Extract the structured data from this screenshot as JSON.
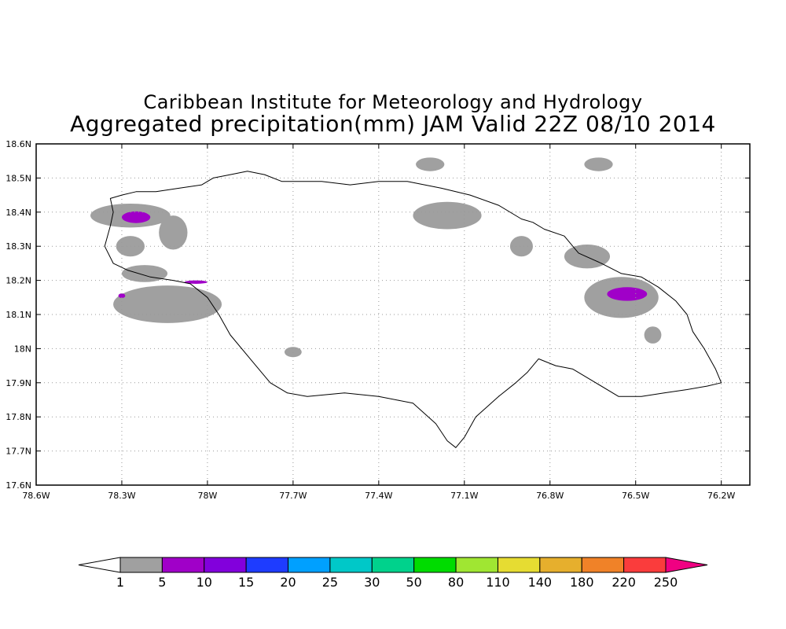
{
  "title_line1": "Caribbean Institute for Meteorology and Hydrology",
  "title_line2": "Aggregated precipitation(mm) JAM Valid 22Z 08/10 2014",
  "map": {
    "lon_range": [
      -78.6,
      -76.1
    ],
    "lat_range": [
      17.6,
      18.6
    ],
    "lon_ticks": [
      -78.6,
      -78.3,
      -78.0,
      -77.7,
      -77.4,
      -77.1,
      -76.8,
      -76.5,
      -76.2
    ],
    "lon_tick_labels": [
      "78.6W",
      "78.3W",
      "78W",
      "77.7W",
      "77.4W",
      "77.1W",
      "76.8W",
      "76.5W",
      "76.2W"
    ],
    "lat_ticks": [
      17.6,
      17.7,
      17.8,
      17.9,
      18.0,
      18.1,
      18.2,
      18.3,
      18.4,
      18.5,
      18.6
    ],
    "lat_tick_labels": [
      "17.6N",
      "17.7N",
      "17.8N",
      "17.9N",
      "18N",
      "18.1N",
      "18.2N",
      "18.3N",
      "18.4N",
      "18.5N",
      "18.6N"
    ],
    "grid": "dotted",
    "coastline": [
      [
        -78.34,
        18.44
      ],
      [
        -78.3,
        18.45
      ],
      [
        -78.25,
        18.46
      ],
      [
        -78.18,
        18.46
      ],
      [
        -78.1,
        18.47
      ],
      [
        -78.02,
        18.48
      ],
      [
        -77.98,
        18.5
      ],
      [
        -77.92,
        18.51
      ],
      [
        -77.86,
        18.52
      ],
      [
        -77.8,
        18.51
      ],
      [
        -77.74,
        18.49
      ],
      [
        -77.7,
        18.49
      ],
      [
        -77.6,
        18.49
      ],
      [
        -77.5,
        18.48
      ],
      [
        -77.4,
        18.49
      ],
      [
        -77.3,
        18.49
      ],
      [
        -77.18,
        18.47
      ],
      [
        -77.08,
        18.45
      ],
      [
        -76.98,
        18.42
      ],
      [
        -76.9,
        18.38
      ],
      [
        -76.86,
        18.37
      ],
      [
        -76.82,
        18.35
      ],
      [
        -76.75,
        18.33
      ],
      [
        -76.7,
        18.28
      ],
      [
        -76.62,
        18.25
      ],
      [
        -76.55,
        18.22
      ],
      [
        -76.48,
        18.21
      ],
      [
        -76.42,
        18.18
      ],
      [
        -76.36,
        18.14
      ],
      [
        -76.32,
        18.1
      ],
      [
        -76.3,
        18.05
      ],
      [
        -76.26,
        18.0
      ],
      [
        -76.22,
        17.94
      ],
      [
        -76.2,
        17.9
      ],
      [
        -76.25,
        17.89
      ],
      [
        -76.32,
        17.88
      ],
      [
        -76.4,
        17.87
      ],
      [
        -76.48,
        17.86
      ],
      [
        -76.56,
        17.86
      ],
      [
        -76.64,
        17.9
      ],
      [
        -76.72,
        17.94
      ],
      [
        -76.78,
        17.95
      ],
      [
        -76.84,
        17.97
      ],
      [
        -76.88,
        17.93
      ],
      [
        -76.92,
        17.9
      ],
      [
        -76.98,
        17.86
      ],
      [
        -77.02,
        17.83
      ],
      [
        -77.06,
        17.8
      ],
      [
        -77.1,
        17.74
      ],
      [
        -77.13,
        17.71
      ],
      [
        -77.16,
        17.73
      ],
      [
        -77.2,
        17.78
      ],
      [
        -77.28,
        17.84
      ],
      [
        -77.4,
        17.86
      ],
      [
        -77.52,
        17.87
      ],
      [
        -77.65,
        17.86
      ],
      [
        -77.72,
        17.87
      ],
      [
        -77.78,
        17.9
      ],
      [
        -77.84,
        17.96
      ],
      [
        -77.92,
        18.04
      ],
      [
        -77.96,
        18.1
      ],
      [
        -78.0,
        18.15
      ],
      [
        -78.06,
        18.19
      ],
      [
        -78.12,
        18.2
      ],
      [
        -78.2,
        18.21
      ],
      [
        -78.28,
        18.23
      ],
      [
        -78.33,
        18.25
      ],
      [
        -78.36,
        18.3
      ],
      [
        -78.34,
        18.36
      ],
      [
        -78.33,
        18.4
      ],
      [
        -78.34,
        18.44
      ]
    ],
    "rain_areas": [
      {
        "level": 1,
        "center": [
          -78.27,
          18.39
        ],
        "radius": [
          0.14,
          0.035
        ]
      },
      {
        "level": 1,
        "center": [
          -78.12,
          18.34
        ],
        "radius": [
          0.05,
          0.05
        ]
      },
      {
        "level": 1,
        "center": [
          -78.27,
          18.3
        ],
        "radius": [
          0.05,
          0.03
        ]
      },
      {
        "level": 1,
        "center": [
          -78.22,
          18.22
        ],
        "radius": [
          0.08,
          0.025
        ]
      },
      {
        "level": 1,
        "center": [
          -78.14,
          18.13
        ],
        "radius": [
          0.19,
          0.055
        ]
      },
      {
        "level": 1,
        "center": [
          -77.7,
          17.99
        ],
        "radius": [
          0.03,
          0.015
        ]
      },
      {
        "level": 1,
        "center": [
          -77.22,
          18.54
        ],
        "radius": [
          0.05,
          0.02
        ]
      },
      {
        "level": 1,
        "center": [
          -77.16,
          18.39
        ],
        "radius": [
          0.12,
          0.04
        ]
      },
      {
        "level": 1,
        "center": [
          -76.9,
          18.3
        ],
        "radius": [
          0.04,
          0.03
        ]
      },
      {
        "level": 1,
        "center": [
          -76.63,
          18.54
        ],
        "radius": [
          0.05,
          0.02
        ]
      },
      {
        "level": 1,
        "center": [
          -76.67,
          18.27
        ],
        "radius": [
          0.08,
          0.035
        ]
      },
      {
        "level": 1,
        "center": [
          -76.55,
          18.15
        ],
        "radius": [
          0.13,
          0.06
        ]
      },
      {
        "level": 1,
        "center": [
          -76.44,
          18.04
        ],
        "radius": [
          0.03,
          0.025
        ]
      },
      {
        "level": 5,
        "center": [
          -78.25,
          18.385
        ],
        "radius": [
          0.05,
          0.017
        ]
      },
      {
        "level": 5,
        "center": [
          -78.04,
          18.195
        ],
        "radius": [
          0.04,
          0.005
        ]
      },
      {
        "level": 5,
        "center": [
          -78.3,
          18.155
        ],
        "radius": [
          0.012,
          0.007
        ]
      },
      {
        "level": 5,
        "center": [
          -76.53,
          18.16
        ],
        "radius": [
          0.07,
          0.02
        ]
      }
    ]
  },
  "colorbar": {
    "labels": [
      "1",
      "5",
      "10",
      "15",
      "20",
      "25",
      "30",
      "50",
      "80",
      "110",
      "140",
      "180",
      "220",
      "250"
    ],
    "colors": [
      "#a0a0a0",
      "#a000c8",
      "#8200dc",
      "#1e3cff",
      "#00a0ff",
      "#00c8c8",
      "#00d28c",
      "#00dc00",
      "#a0e632",
      "#e6dc32",
      "#e6af2d",
      "#f08228",
      "#fa3c3c",
      "#f00082"
    ],
    "under_color": "#ffffff",
    "over_color": "#f00082"
  }
}
